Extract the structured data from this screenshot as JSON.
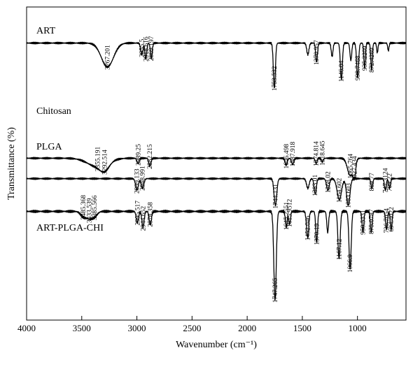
{
  "chart_data": {
    "type": "line",
    "xlabel": "Wavenumber (cm⁻¹)",
    "ylabel": "Transmittance (%)",
    "xlim": [
      4000,
      560
    ],
    "x_reversed": true,
    "xticks": [
      4000,
      3500,
      3000,
      2500,
      2000,
      1500,
      1000
    ],
    "y_ticks_shown": false,
    "grid": false,
    "series": [
      {
        "name": "ART",
        "baseline": 0.88,
        "bands": [
          {
            "x": 3267.201,
            "depth": 0.62,
            "width": 55
          },
          {
            "x": 2955.5,
            "depth": 0.3,
            "width": 10
          },
          {
            "x": 2918.616,
            "depth": 0.42,
            "width": 8
          },
          {
            "x": 2869.197,
            "depth": 0.4,
            "width": 8
          },
          {
            "x": 1753.532,
            "depth": 1.18,
            "width": 9
          },
          {
            "x": 1450,
            "depth": 0.3,
            "width": 10
          },
          {
            "x": 1370.957,
            "depth": 0.5,
            "width": 8
          },
          {
            "x": 1230,
            "depth": 0.35,
            "width": 8
          },
          {
            "x": 1146.04,
            "depth": 0.95,
            "width": 9
          },
          {
            "x": 1060,
            "depth": 0.45,
            "width": 8
          },
          {
            "x": 998.7468,
            "depth": 0.9,
            "width": 9
          },
          {
            "x": 935.2209,
            "depth": 0.65,
            "width": 7
          },
          {
            "x": 872.4269,
            "depth": 0.7,
            "width": 7
          },
          {
            "x": 820,
            "depth": 0.25,
            "width": 6
          },
          {
            "x": 720,
            "depth": 0.2,
            "width": 6
          }
        ],
        "peak_labels": [
          "3267.201",
          "2955.5",
          "2918.616",
          "2869.197",
          "1753.532",
          "1370.957",
          "1146.04",
          "998.7468",
          "935.2209",
          "872.4269"
        ]
      },
      {
        "name": "Chitosan",
        "baseline": 0.12,
        "bands": [
          {
            "x": 3355.191,
            "depth": 0.22,
            "width": 90
          },
          {
            "x": 3292.514,
            "depth": 0.18,
            "width": 40
          },
          {
            "x": 2989.25,
            "depth": 0.14,
            "width": 10
          },
          {
            "x": 2882.215,
            "depth": 0.2,
            "width": 10
          },
          {
            "x": 1646.498,
            "depth": 0.18,
            "width": 10
          },
          {
            "x": 1587.918,
            "depth": 0.16,
            "width": 10
          },
          {
            "x": 1374.814,
            "depth": 0.14,
            "width": 8
          },
          {
            "x": 1318.645,
            "depth": 0.1,
            "width": 8
          },
          {
            "x": 1065.764,
            "depth": 0.45,
            "width": 25
          },
          {
            "x": 1027.434,
            "depth": 0.4,
            "width": 12
          }
        ],
        "peak_labels": [
          "3355.191",
          "3292.514",
          "2989.25",
          "2882.215",
          "1646.498",
          "1587.918",
          "1374.814",
          "1318.645",
          "1065.764",
          "1027.434"
        ]
      },
      {
        "name": "PLGA",
        "baseline": 0.28,
        "bands": [
          {
            "x": 2999.133,
            "depth": 0.3,
            "width": 12
          },
          {
            "x": 2948.991,
            "depth": 0.25,
            "width": 12
          },
          {
            "x": 1744.131,
            "depth": 0.7,
            "width": 12
          },
          {
            "x": 1450,
            "depth": 0.25,
            "width": 12
          },
          {
            "x": 1383.01,
            "depth": 0.4,
            "width": 10
          },
          {
            "x": 1268.02,
            "depth": 0.3,
            "width": 12
          },
          {
            "x": 1164.602,
            "depth": 0.55,
            "width": 20
          },
          {
            "x": 1083.603,
            "depth": 0.7,
            "width": 15
          },
          {
            "x": 869.77,
            "depth": 0.25,
            "width": 8
          },
          {
            "x": 747.3124,
            "depth": 0.3,
            "width": 8
          },
          {
            "x": 709.22,
            "depth": 0.25,
            "width": 8
          }
        ],
        "peak_labels": [
          "2999.133",
          "2948.991",
          "1744.131",
          "1383.01",
          "1268.02",
          "1164.602",
          "1083.603",
          "869.77",
          "747.3124",
          "709.22"
        ]
      },
      {
        "name": "ART-PLGA-CHI",
        "baseline": 0.9,
        "bands": [
          {
            "x": 3485.368,
            "depth": 0.1,
            "width": 25
          },
          {
            "x": 3433.539,
            "depth": 0.12,
            "width": 25
          },
          {
            "x": 3385.566,
            "depth": 0.1,
            "width": 25
          },
          {
            "x": 2995.517,
            "depth": 0.22,
            "width": 10
          },
          {
            "x": 2944.652,
            "depth": 0.3,
            "width": 10
          },
          {
            "x": 2878.358,
            "depth": 0.25,
            "width": 10
          },
          {
            "x": 1747.265,
            "depth": 1.7,
            "width": 11
          },
          {
            "x": 1645.2551,
            "depth": 0.3,
            "width": 8
          },
          {
            "x": 1615.9512,
            "depth": 0.25,
            "width": 8
          },
          {
            "x": 1452.046,
            "depth": 0.5,
            "width": 10
          },
          {
            "x": 1370.19,
            "depth": 0.6,
            "width": 8
          },
          {
            "x": 1270,
            "depth": 0.4,
            "width": 8
          },
          {
            "x": 1167.12,
            "depth": 0.9,
            "width": 10
          },
          {
            "x": 1066.9,
            "depth": 1.1,
            "width": 10
          },
          {
            "x": 950.5331,
            "depth": 0.4,
            "width": 8
          },
          {
            "x": 875.0787,
            "depth": 0.4,
            "width": 8
          },
          {
            "x": 736.7054,
            "depth": 0.35,
            "width": 8
          },
          {
            "x": 694.4022,
            "depth": 0.35,
            "width": 8
          }
        ],
        "peak_labels": [
          "3485.368",
          "3433.539",
          "3385.566",
          "2995.517",
          "2944.652",
          "2878.358",
          "1747.265",
          "1645.2551",
          "1615.9512",
          "1452.046",
          "1370.19",
          "1167.12",
          "1066.9",
          "950.5331",
          "875.0787",
          "736.7054",
          "694.4022"
        ]
      }
    ]
  }
}
